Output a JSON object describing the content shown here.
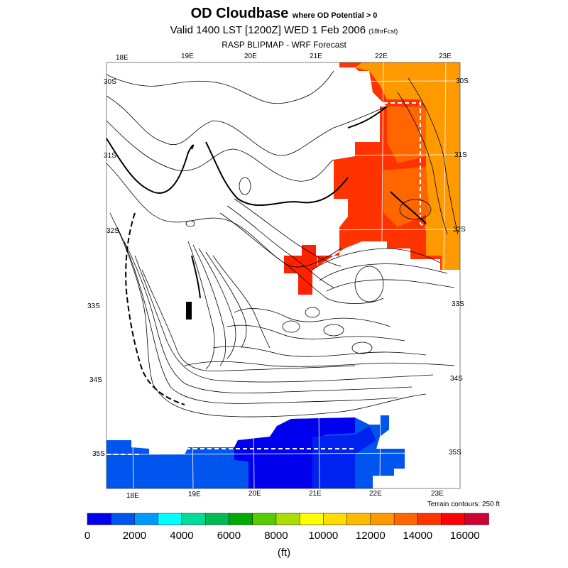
{
  "title": {
    "main": "OD Cloudbase",
    "qualifier": "where OD Potential > 0"
  },
  "valid": {
    "text": "Valid 1400 LST [1200Z] WED 1 Feb 2006",
    "forecast": "(18hrFcst)"
  },
  "source": "RASP BLIPMAP - WRF Forecast",
  "lon_labels_top": [
    "18E",
    "19E",
    "20E",
    "21E",
    "22E",
    "23E"
  ],
  "lon_labels_bottom": [
    "18E",
    "19E",
    "20E",
    "21E",
    "22E",
    "23E"
  ],
  "lat_labels_left": [
    "30S",
    "31S",
    "32S",
    "33S",
    "34S",
    "35S"
  ],
  "lat_labels_right": [
    "30S",
    "31S",
    "32S",
    "33S",
    "34S",
    "35S"
  ],
  "terrain_note": "Terrain contours: 250 ft",
  "colorbar": {
    "ticks": [
      "0",
      "2000",
      "4000",
      "6000",
      "8000",
      "10000",
      "12000",
      "14000",
      "16000"
    ],
    "units": "(ft)",
    "min": 0,
    "max": 17000,
    "step": 1000,
    "colors": [
      "#0000ee",
      "#0055ee",
      "#0099ff",
      "#00ffff",
      "#00dd99",
      "#00bb55",
      "#00aa00",
      "#55cc00",
      "#aadd00",
      "#ffff00",
      "#ffdd00",
      "#ffbb00",
      "#ff9900",
      "#ff6600",
      "#ff3300",
      "#ff0000",
      "#cc0033"
    ]
  }
}
